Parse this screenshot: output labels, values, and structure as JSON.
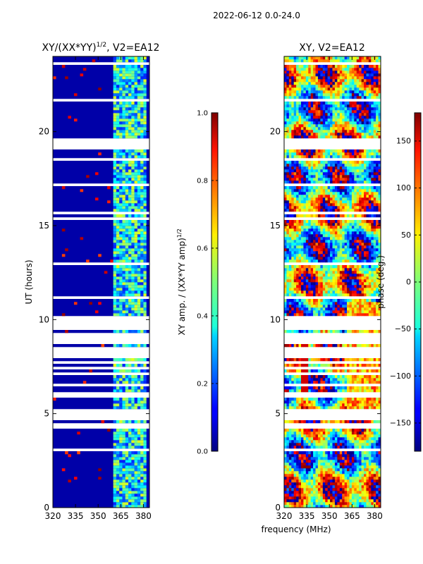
{
  "suptitle": "2022-06-12 0.0-24.0",
  "xlabel": "frequency (MHz)",
  "chart_data": [
    {
      "type": "heatmap",
      "title": "XY/(XX*YY)",
      "title_exp": "1/2",
      "title_suffix": ", V2=EA12",
      "xlabel": "",
      "ylabel": "UT (hours)",
      "xlim": [
        320,
        384
      ],
      "ylim": [
        0,
        24
      ],
      "xticks": [
        320,
        335,
        350,
        365,
        380
      ],
      "yticks": [
        0,
        5,
        10,
        15,
        20
      ],
      "colorbar": {
        "label": "XY amp. / (XX*YY amp)",
        "label_exp": "1/2",
        "range": [
          0.0,
          1.0
        ],
        "ticks": [
          "0.0",
          "0.2",
          "0.4",
          "0.6",
          "0.8",
          "1.0"
        ]
      },
      "colormap": "jet",
      "description_values": "low amplitude (~0.0-0.1) below 360 MHz, higher amplitude (~0.2-0.6) in 360-381 MHz band"
    },
    {
      "type": "heatmap",
      "title": "XY, V2=EA12",
      "xlabel": "",
      "ylabel": "",
      "xlim": [
        320,
        384
      ],
      "ylim": [
        0,
        24
      ],
      "xticks": [
        320,
        335,
        350,
        365,
        380
      ],
      "yticks": [
        0,
        5,
        10,
        15,
        20
      ],
      "colorbar": {
        "label": "phase (deg.)",
        "range": [
          -180,
          180
        ],
        "ticks": [
          "−150",
          "−100",
          "−50",
          "0",
          "50",
          "100",
          "150"
        ]
      },
      "colormap": "jet"
    }
  ]
}
